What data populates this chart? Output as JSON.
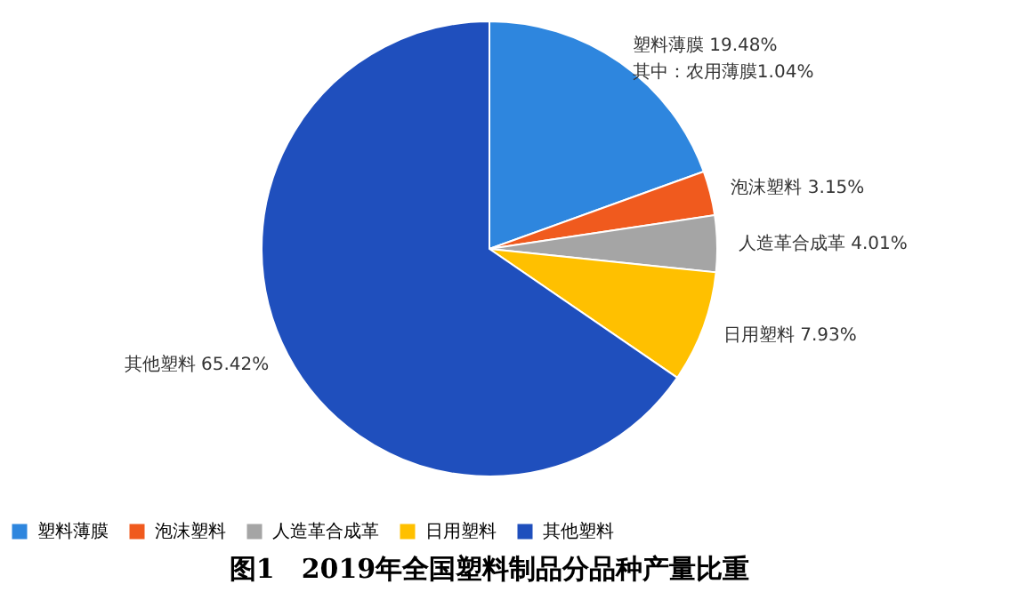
{
  "chart_data": {
    "type": "pie",
    "title": "图1　2019年全国塑料制品分品种产量比重",
    "categories": [
      "塑料薄膜",
      "泡沫塑料",
      "人造革合成革",
      "日用塑料",
      "其他塑料"
    ],
    "values": [
      19.48,
      3.15,
      4.01,
      7.93,
      65.42
    ],
    "colors": [
      "#2e86de",
      "#f05a1e",
      "#a5a5a5",
      "#ffc000",
      "#1f4fbd"
    ],
    "value_labels": [
      "19.48%",
      "3.15%",
      "4.01%",
      "7.93%",
      "65.42%"
    ],
    "annotations": [
      "其中：农用薄膜1.04%"
    ],
    "legend": "bottom"
  }
}
